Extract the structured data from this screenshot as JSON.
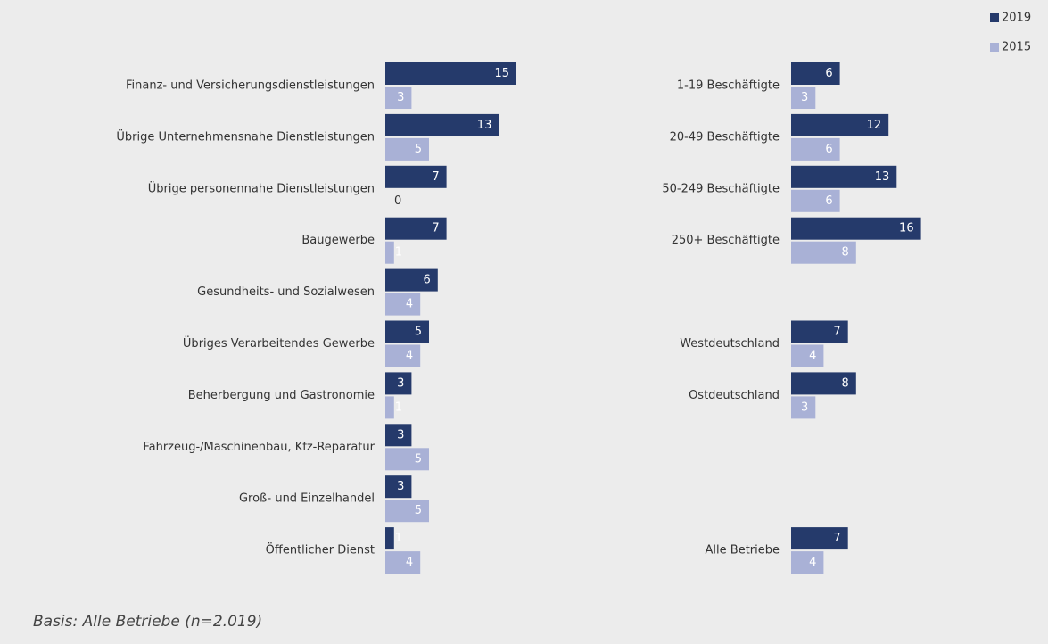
{
  "chart_data": [
    {
      "type": "bar",
      "orientation": "horizontal",
      "categories": [
        "Finanz- und Versicherungsdienstleistungen",
        "Übrige Unternehmensnahe Dienstleistungen",
        "Übrige personennahe Dienstleistungen",
        "Baugewerbe",
        "Gesundheits- und Sozialwesen",
        "Übriges Verarbeitendes Gewerbe",
        "Beherbergung und Gastronomie",
        "Fahrzeug-/Maschinenbau, Kfz-Reparatur",
        "Groß- und Einzelhandel",
        "Öffentlicher Dienst"
      ],
      "series": [
        {
          "name": "2019",
          "color": "#253a6b",
          "values": [
            15,
            13,
            7,
            7,
            6,
            5,
            3,
            3,
            3,
            1
          ]
        },
        {
          "name": "2015",
          "color": "#a9b1d6",
          "values": [
            3,
            5,
            0,
            1,
            4,
            4,
            1,
            5,
            5,
            4
          ]
        }
      ]
    },
    {
      "type": "bar",
      "orientation": "horizontal",
      "categories": [
        "1-19 Beschäftigte",
        "20-49 Beschäftigte",
        "50-249 Beschäftigte",
        "250+ Beschäftigte",
        null,
        "Westdeutschland",
        "Ostdeutschland",
        null,
        null,
        "Alle Betriebe"
      ],
      "series": [
        {
          "color": "#253a6b",
          "values": [
            6,
            12,
            13,
            16,
            null,
            7,
            8,
            null,
            null,
            7
          ]
        },
        {
          "color": "#a9b1d6",
          "values": [
            3,
            6,
            6,
            8,
            null,
            4,
            3,
            null,
            null,
            4
          ]
        }
      ]
    }
  ],
  "footnote": "Basis: Alle Betriebe (n=2.019)"
}
